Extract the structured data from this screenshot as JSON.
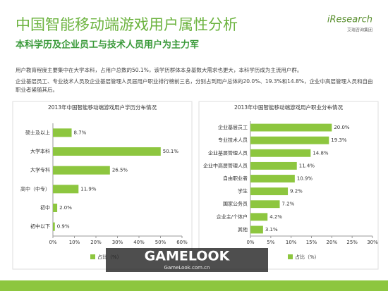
{
  "header": {
    "title": "中国智能移动端游戏用户属性分析",
    "subtitle": "本科学历及企业员工与技术人员用户为主力军"
  },
  "logo": {
    "name": "iResearch",
    "tagline": "艾瑞咨询集团"
  },
  "body": [
    "用户教育程度主要集中在大学本科，占用户总数的50.1%，该学历群体本身基数大需求也更大，本科学历成为主流用户群。",
    "企业基层员工、专业技术人员及企业基层管理人员居用户职业排行榜前三名，分别占到用户总体的20.0%、19.3%和14.8%，企业中高层管理人员和自由职业者紧随其后。"
  ],
  "watermark": {
    "name": "GAMELOOK",
    "url": "GameLook.com.cn"
  },
  "chart_data": [
    {
      "type": "hbar",
      "title": "2013年中国智能移动端游戏用户学历分布情况",
      "categories": [
        "硕士及以上",
        "大学本科",
        "大学专科",
        "高中（中专）",
        "初中",
        "初中以下"
      ],
      "series": [
        {
          "name": "占比（%）",
          "color": "#8dc63f",
          "values": [
            8.7,
            50.1,
            26.5,
            11.9,
            2.0,
            0.9
          ],
          "value_labels": [
            "8.7%",
            "50.1%",
            "26.5%",
            "11.9%",
            "2.0%",
            "0.9%"
          ]
        }
      ],
      "xlim": [
        0,
        60
      ],
      "xticks": [
        {
          "value": 0,
          "label": "0%"
        },
        {
          "value": 10,
          "label": "10%"
        },
        {
          "value": 20,
          "label": "20%"
        },
        {
          "value": 30,
          "label": "30%"
        },
        {
          "value": 40,
          "label": "40%"
        },
        {
          "value": 50,
          "label": "50%"
        },
        {
          "value": 60,
          "label": "60%"
        }
      ]
    },
    {
      "type": "hbar",
      "title": "2013年中国智能移动端游戏用户职业分布情况",
      "categories": [
        "企业基层员工",
        "专业技术人员",
        "企业基层管理人员",
        "企业中高层管理人员",
        "自由职业者",
        "学生",
        "国家公务员",
        "企业主/个体户",
        "其他"
      ],
      "series": [
        {
          "name": "占比（%）",
          "color": "#8dc63f",
          "values": [
            20.0,
            19.3,
            14.8,
            11.4,
            10.9,
            9.2,
            7.2,
            4.2,
            3.1
          ],
          "value_labels": [
            "20.0%",
            "19.3%",
            "14.8%",
            "11.4%",
            "10.9%",
            "9.2%",
            "7.2%",
            "4.2%",
            "3.1%"
          ]
        }
      ],
      "xlim": [
        0,
        30
      ],
      "xticks": [
        {
          "value": 0,
          "label": "0%"
        },
        {
          "value": 5,
          "label": "5%"
        },
        {
          "value": 10,
          "label": "10%"
        },
        {
          "value": 15,
          "label": "15%"
        },
        {
          "value": 20,
          "label": "20%"
        },
        {
          "value": 25,
          "label": "25%"
        },
        {
          "value": 30,
          "label": "30%"
        }
      ]
    }
  ]
}
